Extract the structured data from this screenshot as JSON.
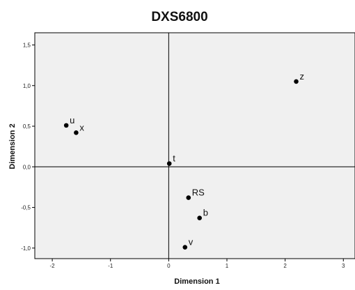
{
  "chart_data": {
    "type": "scatter",
    "title": "DXS6800",
    "xlabel": "Dimension 1",
    "ylabel": "Dimension 2",
    "xlim": [
      -2.3,
      3.2
    ],
    "ylim": [
      -1.13,
      1.65
    ],
    "xticks": [
      -2,
      -1,
      0,
      1,
      2,
      3
    ],
    "xtick_labels": [
      "-2",
      "-1",
      "0",
      "1",
      "2",
      "3"
    ],
    "yticks": [
      1.5,
      1.0,
      0.5,
      0.0,
      -0.5,
      -1.0
    ],
    "ytick_labels": [
      "1,5",
      "1,0",
      "0,5",
      "0,0",
      "-0,5",
      "-1,0"
    ],
    "grid": false,
    "points": [
      {
        "label": "z",
        "x": 2.19,
        "y": 1.05
      },
      {
        "label": "u",
        "x": -1.76,
        "y": 0.51
      },
      {
        "label": "x",
        "x": -1.59,
        "y": 0.42
      },
      {
        "label": "t",
        "x": 0.01,
        "y": 0.04
      },
      {
        "label": "RS",
        "x": 0.34,
        "y": -0.38
      },
      {
        "label": "b",
        "x": 0.53,
        "y": -0.63
      },
      {
        "label": "v",
        "x": 0.28,
        "y": -0.99
      }
    ]
  }
}
